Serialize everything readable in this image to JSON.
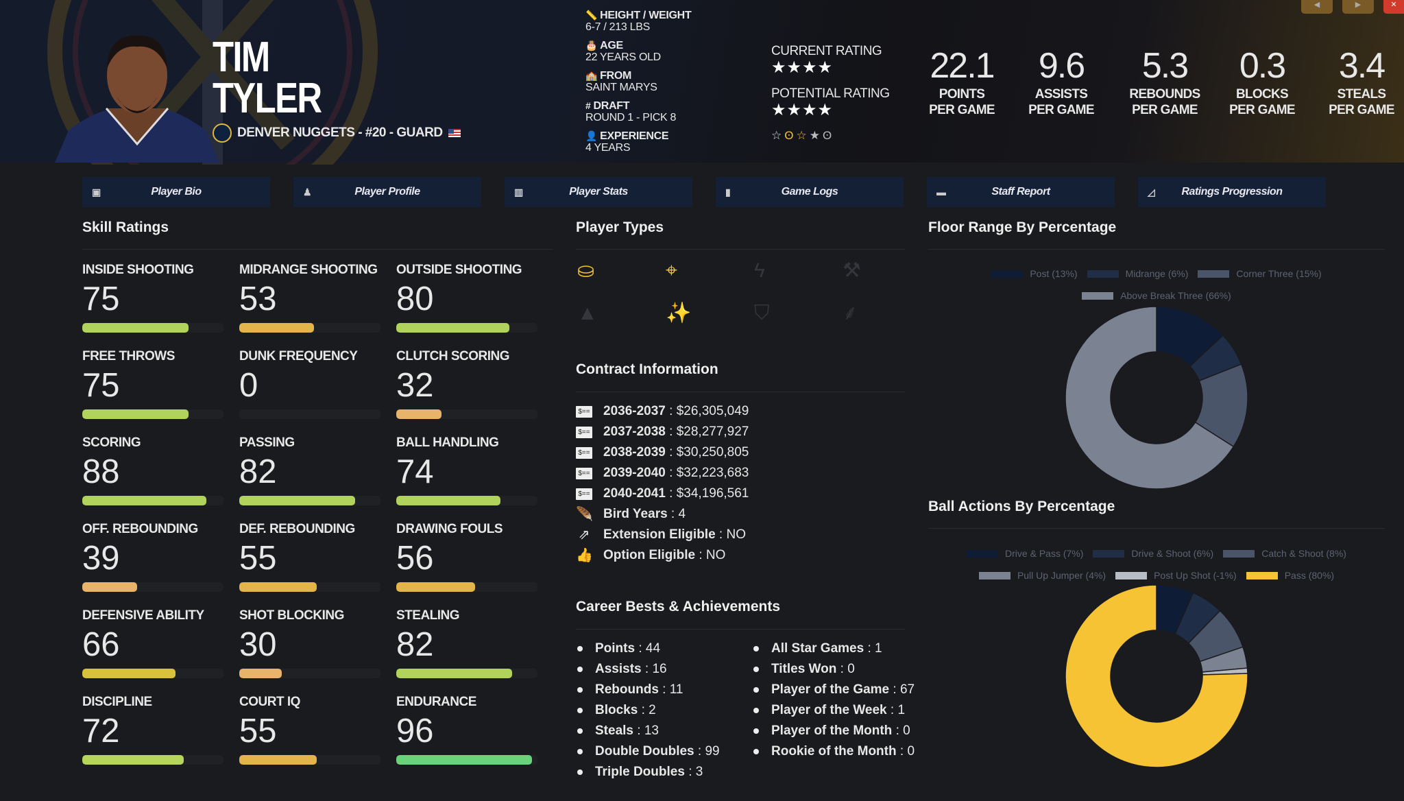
{
  "player": {
    "first_name": "TIM",
    "last_name": "TYLER",
    "team_line": "DENVER NUGGETS - #20 - GUARD"
  },
  "info": [
    {
      "icon": "ruler-icon",
      "glyph": "📏",
      "label": "HEIGHT / WEIGHT",
      "value": "6-7 / 213 LBS"
    },
    {
      "icon": "birthday-cake-icon",
      "glyph": "🎂",
      "label": "AGE",
      "value": "22 YEARS OLD"
    },
    {
      "icon": "school-icon",
      "glyph": "🏫",
      "label": "FROM",
      "value": "SAINT MARYS"
    },
    {
      "icon": "hashtag-icon",
      "glyph": "#",
      "label": "DRAFT",
      "value": "ROUND 1 - PICK 8"
    },
    {
      "icon": "user-clock-icon",
      "glyph": "👤",
      "label": "EXPERIENCE",
      "value": "4 YEARS"
    }
  ],
  "ratings": {
    "current_label": "CURRENT RATING",
    "current_stars": 4,
    "potential_label": "POTENTIAL RATING",
    "potential_stars": 4
  },
  "stats": [
    {
      "value": "22.1",
      "l1": "POINTS",
      "l2": "PER GAME"
    },
    {
      "value": "9.6",
      "l1": "ASSISTS",
      "l2": "PER GAME"
    },
    {
      "value": "5.3",
      "l1": "REBOUNDS",
      "l2": "PER GAME"
    },
    {
      "value": "0.3",
      "l1": "BLOCKS",
      "l2": "PER GAME"
    },
    {
      "value": "3.4",
      "l1": "STEALS",
      "l2": "PER GAME"
    }
  ],
  "tabs": [
    {
      "label": "Player Bio",
      "icon": "id-card-icon",
      "glyph": "▣"
    },
    {
      "label": "Player Profile",
      "icon": "user-tie-icon",
      "glyph": "♟"
    },
    {
      "label": "Player Stats",
      "icon": "bar-chart-icon",
      "glyph": "▥"
    },
    {
      "label": "Game Logs",
      "icon": "clipboard-icon",
      "glyph": "▮"
    },
    {
      "label": "Staff Report",
      "icon": "comment-icon",
      "glyph": "▬"
    },
    {
      "label": "Ratings Progression",
      "icon": "line-chart-icon",
      "glyph": "◿"
    }
  ],
  "skill_title": "Skill Ratings",
  "skills": [
    {
      "label": "INSIDE SHOOTING",
      "value": 75,
      "color": "#b1d35c"
    },
    {
      "label": "MIDRANGE SHOOTING",
      "value": 53,
      "color": "#e2b449"
    },
    {
      "label": "OUTSIDE SHOOTING",
      "value": 80,
      "color": "#b1d35c"
    },
    {
      "label": "FREE THROWS",
      "value": 75,
      "color": "#b1d35c"
    },
    {
      "label": "DUNK FREQUENCY",
      "value": 0,
      "color": "#e8b36a"
    },
    {
      "label": "CLUTCH SCORING",
      "value": 32,
      "color": "#e8b36a"
    },
    {
      "label": "SCORING",
      "value": 88,
      "color": "#b1d35c"
    },
    {
      "label": "PASSING",
      "value": 82,
      "color": "#b1d35c"
    },
    {
      "label": "BALL HANDLING",
      "value": 74,
      "color": "#b1d35c"
    },
    {
      "label": "OFF. REBOUNDING",
      "value": 39,
      "color": "#e8b36a"
    },
    {
      "label": "DEF. REBOUNDING",
      "value": 55,
      "color": "#e2b449"
    },
    {
      "label": "DRAWING FOULS",
      "value": 56,
      "color": "#e2b449"
    },
    {
      "label": "DEFENSIVE ABILITY",
      "value": 66,
      "color": "#d8c23c"
    },
    {
      "label": "SHOT BLOCKING",
      "value": 30,
      "color": "#e8b36a"
    },
    {
      "label": "STEALING",
      "value": 82,
      "color": "#b1d35c"
    },
    {
      "label": "DISCIPLINE",
      "value": 72,
      "color": "#b5d65a"
    },
    {
      "label": "COURT IQ",
      "value": 55,
      "color": "#e2b449"
    },
    {
      "label": "ENDURANCE",
      "value": 96,
      "color": "#6ad27a"
    }
  ],
  "player_types_title": "Player Types",
  "player_types": [
    {
      "icon": "paint-bucket-icon",
      "glyph": "⛀",
      "active": true
    },
    {
      "icon": "crosshairs-icon",
      "glyph": "⌖",
      "active": true
    },
    {
      "icon": "bolt-icon",
      "glyph": "ϟ",
      "active": false
    },
    {
      "icon": "paint-roller-icon",
      "glyph": "⚒",
      "active": false
    },
    {
      "icon": "wizard-hat-icon",
      "glyph": "▲",
      "active": false
    },
    {
      "icon": "magic-wand-icon",
      "glyph": "✨",
      "active": true
    },
    {
      "icon": "shield-icon",
      "glyph": "⛉",
      "active": false
    },
    {
      "icon": "broom-icon",
      "glyph": "⸙",
      "active": false
    }
  ],
  "colors": {
    "active_icon": "#f2c232",
    "inactive_icon": "#34363b"
  },
  "contract_title": "Contract Information",
  "contract": [
    {
      "label": "2036-2037",
      "value": "$26,305,049"
    },
    {
      "label": "2037-2038",
      "value": "$28,277,927"
    },
    {
      "label": "2038-2039",
      "value": "$30,250,805"
    },
    {
      "label": "2039-2040",
      "value": "$32,223,683"
    },
    {
      "label": "2040-2041",
      "value": "$34,196,561"
    }
  ],
  "contract_extra": [
    {
      "icon": "feather-icon",
      "glyph": "🪶",
      "label": "Bird Years",
      "value": "4"
    },
    {
      "icon": "external-link-icon",
      "glyph": "⇗",
      "label": "Extension Eligible",
      "value": "NO"
    },
    {
      "icon": "thumbs-up-icon",
      "glyph": "👍",
      "label": "Option Eligible",
      "value": "NO"
    }
  ],
  "career_title": "Career Bests & Achievements",
  "career_left": [
    {
      "label": "Points",
      "value": "44"
    },
    {
      "label": "Assists",
      "value": "16"
    },
    {
      "label": "Rebounds",
      "value": "11"
    },
    {
      "label": "Blocks",
      "value": "2"
    },
    {
      "label": "Steals",
      "value": "13"
    },
    {
      "label": "Double Doubles",
      "value": "99"
    },
    {
      "label": "Triple Doubles",
      "value": "3"
    }
  ],
  "career_right": [
    {
      "label": "All Star Games",
      "value": "1"
    },
    {
      "label": "Titles Won",
      "value": "0"
    },
    {
      "label": "Player of the Game",
      "value": "67"
    },
    {
      "label": "Player of the Week",
      "value": "1"
    },
    {
      "label": "Player of the Month",
      "value": "0"
    },
    {
      "label": "Rookie of the Month",
      "value": "0"
    }
  ],
  "chart_data": [
    {
      "type": "pie",
      "title": "Floor Range By Percentage",
      "legend": "top",
      "series": [
        {
          "name": "Post (13%)",
          "value": 13,
          "color": "#0f1c36"
        },
        {
          "name": "Midrange (6%)",
          "value": 6,
          "color": "#1f2d47"
        },
        {
          "name": "Corner Three (15%)",
          "value": 15,
          "color": "#4a5569"
        },
        {
          "name": "Above Break Three (66%)",
          "value": 66,
          "color": "#7b8292"
        }
      ]
    },
    {
      "type": "pie",
      "title": "Ball Actions By Percentage",
      "legend": "top",
      "series": [
        {
          "name": "Drive & Pass (7%)",
          "value": 7,
          "color": "#0f1c36"
        },
        {
          "name": "Drive & Shoot (6%)",
          "value": 6,
          "color": "#1f2d47"
        },
        {
          "name": "Catch & Shoot (8%)",
          "value": 8,
          "color": "#4a5569"
        },
        {
          "name": "Pull Up Jumper (4%)",
          "value": 4,
          "color": "#7b8292"
        },
        {
          "name": "Post Up Shot (-1%)",
          "value": -1,
          "color": "#b8bcc4"
        },
        {
          "name": "Pass (80%)",
          "value": 80,
          "color": "#f6c335"
        }
      ]
    }
  ]
}
